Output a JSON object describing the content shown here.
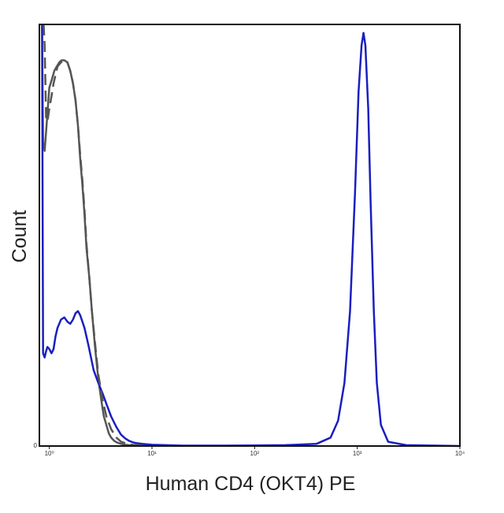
{
  "chart_data": {
    "type": "line",
    "title": "",
    "xlabel": "Human CD4 (OKT4) PE",
    "ylabel": "Count",
    "x_scale": "log",
    "xlim": [
      0.8,
      10000
    ],
    "ylim": [
      0,
      100
    ],
    "y_origin_label": "0",
    "x_ticks": [
      {
        "value": 1,
        "label": "10⁰"
      },
      {
        "value": 10,
        "label": "10¹"
      },
      {
        "value": 100,
        "label": "10²"
      },
      {
        "value": 1000,
        "label": "10³"
      },
      {
        "value": 10000,
        "label": "10⁴"
      }
    ],
    "grid": false,
    "legend": "none",
    "series": [
      {
        "color": "#555555",
        "dash": "solid",
        "x": [
          0.85,
          0.87,
          0.9,
          0.94,
          1.0,
          1.06,
          1.12,
          1.18,
          1.25,
          1.32,
          1.4,
          1.5,
          1.6,
          1.7,
          1.8,
          1.9,
          2.0,
          2.1,
          2.2,
          2.3,
          2.45,
          2.6,
          2.8,
          3.0,
          3.2,
          3.4,
          3.6,
          3.8,
          4.0,
          4.3,
          4.6,
          5.0,
          5.5,
          6.0,
          6.5,
          7.0,
          8.0,
          9.0,
          10.0,
          12.0,
          15.0,
          20.0
        ],
        "values": [
          100,
          72,
          70,
          76,
          85,
          87,
          89,
          90,
          91,
          91.5,
          91.5,
          91,
          89,
          86,
          82,
          76,
          68,
          62,
          55,
          47,
          40,
          32,
          23,
          16,
          11,
          7,
          5,
          3,
          2,
          1.2,
          0.8,
          0.5,
          0.3,
          0.2,
          0.15,
          0.1,
          0.08,
          0.06,
          0.05,
          0.04,
          0.03,
          0.02
        ]
      },
      {
        "color": "#1a1fbf",
        "dash": "solid",
        "x": [
          0.85,
          0.87,
          0.9,
          0.93,
          0.96,
          1.0,
          1.05,
          1.1,
          1.15,
          1.2,
          1.3,
          1.4,
          1.5,
          1.6,
          1.7,
          1.8,
          1.9,
          2.0,
          2.2,
          2.4,
          2.7,
          3.0,
          3.3,
          3.6,
          4.0,
          4.5,
          5.0,
          5.5,
          6.0,
          6.5,
          7.0,
          8.0,
          10.0,
          20.0,
          50.0,
          100.0,
          200.0,
          400.0,
          550.0,
          650.0,
          750.0,
          850.0,
          950.0,
          1030.0,
          1100.0,
          1150.0,
          1200.0,
          1280.0,
          1350.0,
          1450.0,
          1550.0,
          1700.0,
          2000.0,
          3000.0,
          10000.0
        ],
        "values": [
          100,
          22,
          21,
          22.5,
          23.5,
          23,
          22,
          23,
          26,
          28,
          30,
          30.5,
          29.5,
          29,
          30,
          31.5,
          32,
          31,
          28,
          24,
          18,
          15,
          12.5,
          10,
          7,
          4.5,
          2.7,
          1.8,
          1.2,
          0.9,
          0.7,
          0.5,
          0.3,
          0.1,
          0.1,
          0.15,
          0.2,
          0.5,
          2,
          6,
          15,
          32,
          60,
          84,
          95,
          98,
          95,
          80,
          58,
          32,
          15,
          5,
          1,
          0.2,
          0
        ]
      },
      {
        "color": "#555555",
        "dash": "dashed",
        "x": [
          0.88,
          0.9,
          0.93,
          0.96,
          1.0,
          1.05,
          1.1,
          1.15,
          1.2,
          1.3,
          1.4,
          1.5,
          1.6,
          1.7,
          1.8,
          1.9,
          2.0,
          2.1,
          2.2,
          2.3,
          2.45,
          2.6,
          2.8,
          3.0,
          3.3,
          3.6,
          4.0,
          4.5,
          5.0,
          6.0,
          8.0
        ],
        "values": [
          100,
          95,
          78,
          77,
          80,
          83,
          86,
          88,
          90,
          91,
          91.5,
          91,
          89,
          86,
          82,
          76,
          69,
          63,
          56,
          48,
          40,
          32,
          24,
          17,
          11,
          7,
          4,
          2,
          1,
          0.4,
          0.1
        ]
      }
    ]
  }
}
